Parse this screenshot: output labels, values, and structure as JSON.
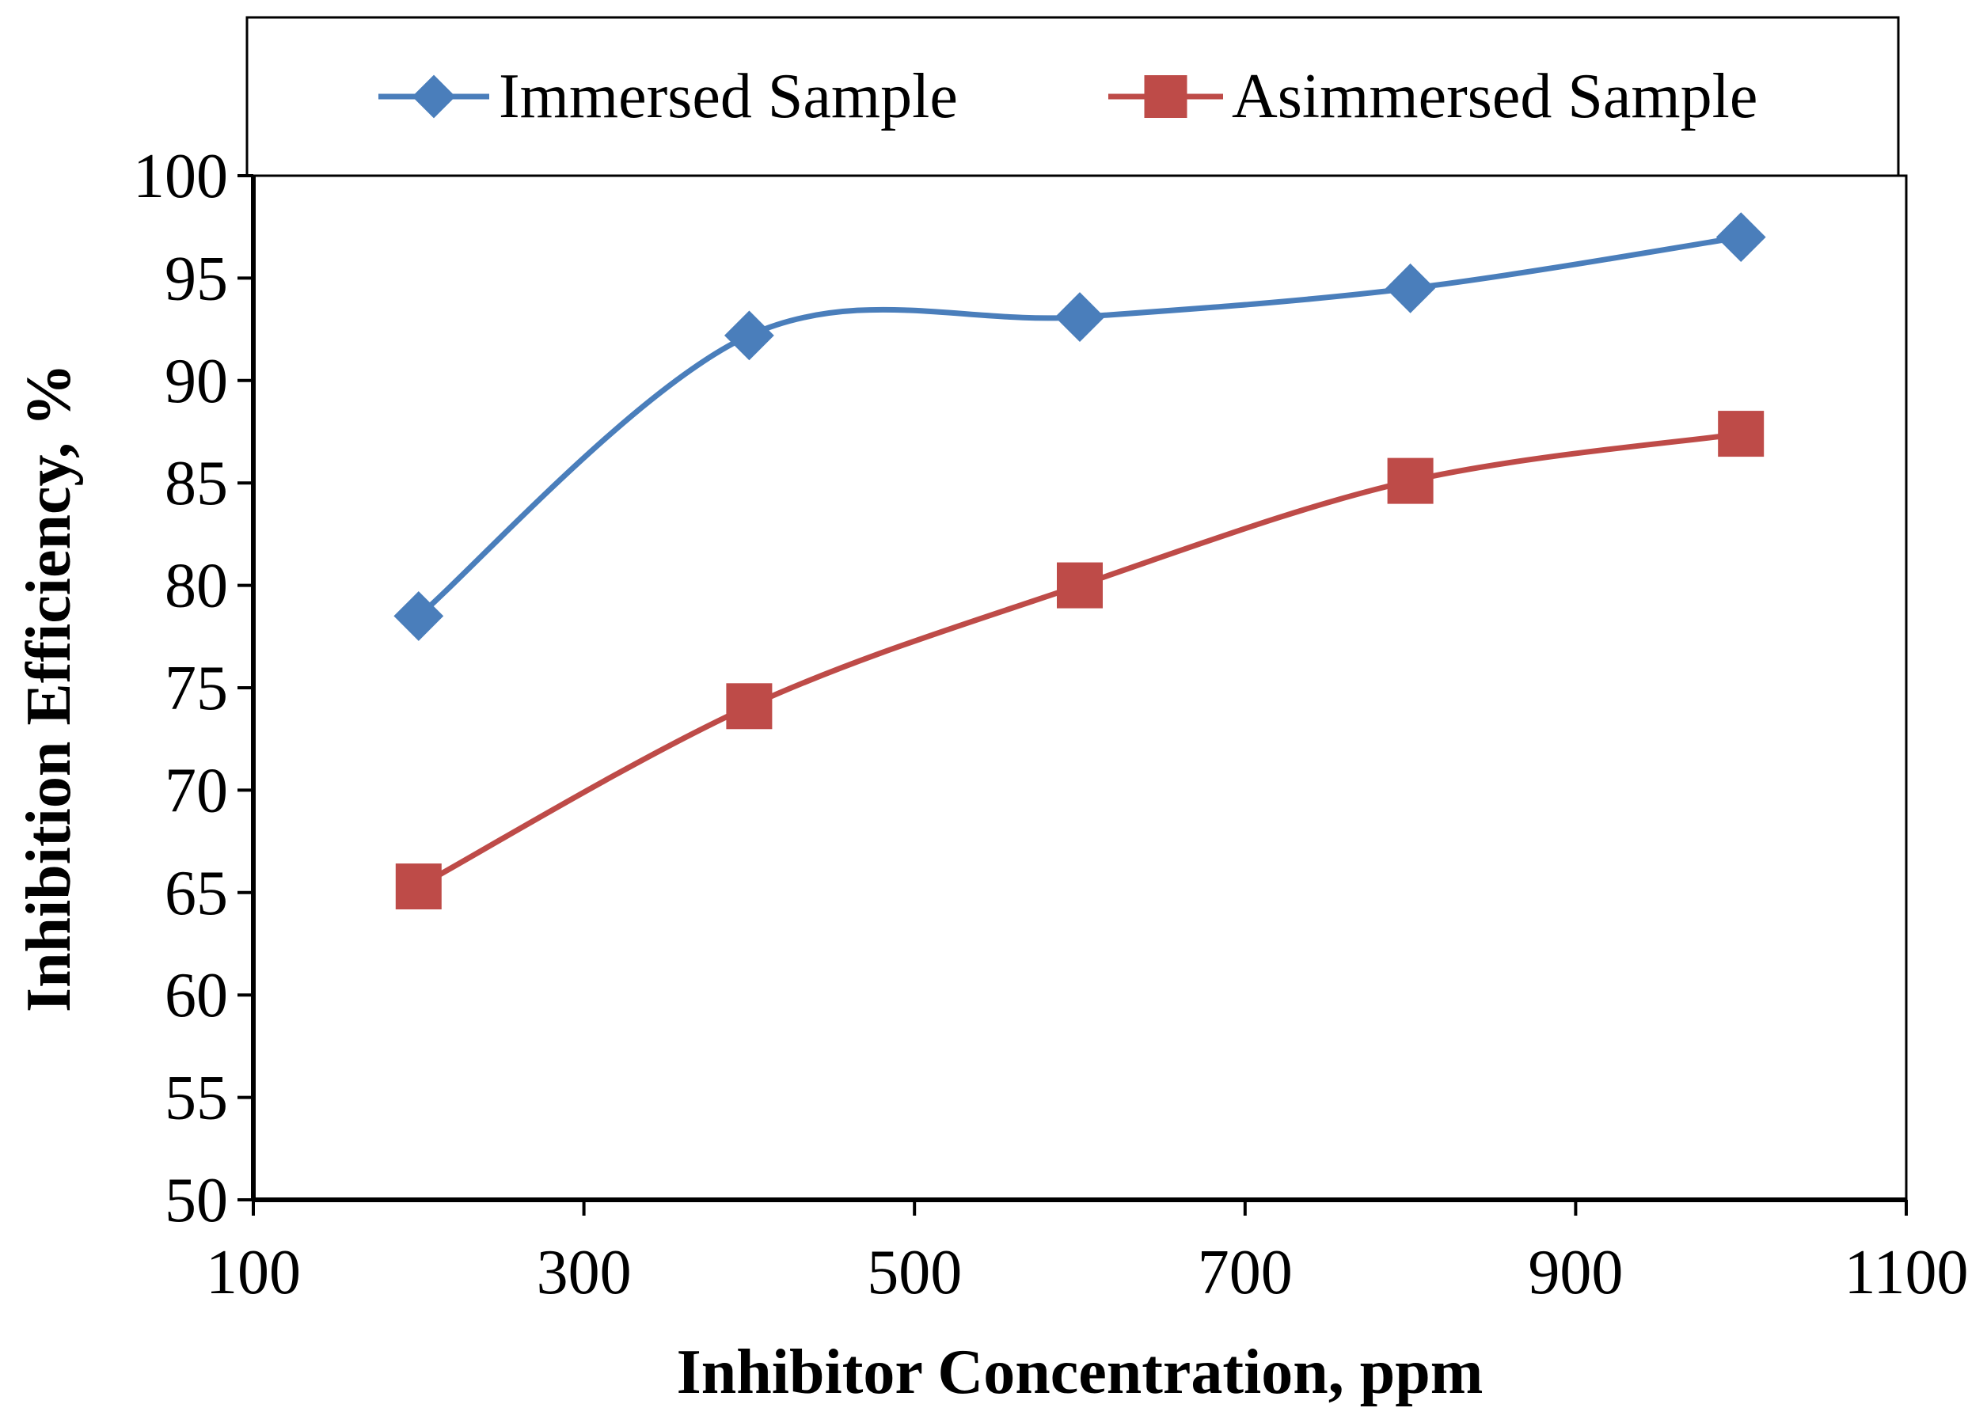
{
  "chart_data": {
    "type": "line",
    "title": "",
    "xlabel": "Inhibitor Concentration,  ppm",
    "ylabel": "Inhibition Efficiency, %",
    "xlim": [
      100,
      1100
    ],
    "ylim": [
      50,
      100
    ],
    "xticks": [
      100,
      300,
      500,
      700,
      900,
      1100
    ],
    "yticks": [
      50,
      55,
      60,
      65,
      70,
      75,
      80,
      85,
      90,
      95,
      100
    ],
    "grid": false,
    "legend_position": "top",
    "smooth": true,
    "x": [
      200,
      400,
      600,
      800,
      1000
    ],
    "series": [
      {
        "name": "Immersed Sample",
        "marker": "diamond",
        "color": "#4a7ebb",
        "values": [
          78.5,
          92.2,
          93.1,
          94.5,
          97.0
        ]
      },
      {
        "name": "Asimmersed Sample",
        "marker": "square",
        "color": "#be4b48",
        "values": [
          65.3,
          74.1,
          80.0,
          85.1,
          87.4
        ]
      }
    ]
  }
}
